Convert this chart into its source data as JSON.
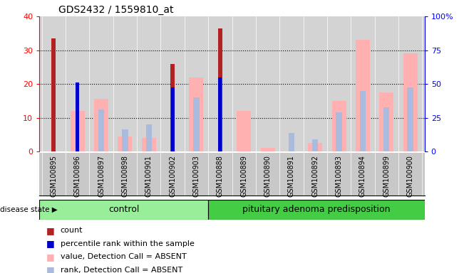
{
  "title": "GDS2432 / 1559810_at",
  "samples": [
    "GSM100895",
    "GSM100896",
    "GSM100897",
    "GSM100898",
    "GSM100901",
    "GSM100902",
    "GSM100903",
    "GSM100888",
    "GSM100889",
    "GSM100890",
    "GSM100891",
    "GSM100892",
    "GSM100893",
    "GSM100894",
    "GSM100899",
    "GSM100900"
  ],
  "count": [
    33.5,
    0,
    0,
    0,
    0,
    26,
    0,
    36.5,
    0,
    0,
    0,
    0,
    0,
    0,
    0,
    0
  ],
  "percentile_rank": [
    0,
    20.5,
    0,
    0,
    0,
    19,
    0,
    22,
    0,
    0,
    0,
    0,
    0,
    0,
    0,
    0
  ],
  "value_absent": [
    0,
    12,
    15.5,
    4.5,
    4,
    0,
    22,
    0,
    12,
    1,
    0,
    2.5,
    15,
    33,
    17.5,
    29
  ],
  "rank_absent": [
    0,
    0,
    12.5,
    6.5,
    8,
    0,
    16,
    0,
    0,
    0,
    5.5,
    3.5,
    11.5,
    18,
    13,
    19
  ],
  "control_count": 7,
  "disease_count": 9,
  "left_label": "control",
  "right_label": "pituitary adenoma predisposition",
  "ylim_left": [
    0,
    40
  ],
  "ylim_right": [
    0,
    100
  ],
  "yticks_left": [
    0,
    10,
    20,
    30,
    40
  ],
  "ytick_labels_right": [
    "0",
    "25",
    "50",
    "75",
    "100%"
  ],
  "color_count": "#B22222",
  "color_percentile": "#0000CC",
  "color_value_absent": "#FFB0B0",
  "color_rank_absent": "#AABBDD",
  "bg_color": "#D3D3D3",
  "xticklabel_bg": "#C8C8C8",
  "group_color_control": "#99EE99",
  "group_color_disease": "#44CC44",
  "disease_state_label": "disease state",
  "legend_items": [
    "count",
    "percentile rank within the sample",
    "value, Detection Call = ABSENT",
    "rank, Detection Call = ABSENT"
  ]
}
